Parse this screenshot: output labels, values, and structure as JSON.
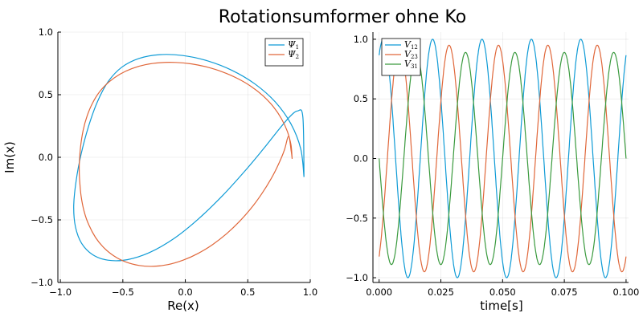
{
  "figure": {
    "title": "Rotationsumformer ohne Ko",
    "colors": {
      "blue": "#0f9bd6",
      "orange": "#e0673a",
      "green": "#3a9a3e"
    }
  },
  "chart_data": [
    {
      "type": "line",
      "name": "phase-plane",
      "xlabel": "Re(x)",
      "ylabel": "Im(x)",
      "xlim": [
        -1.02,
        1.0
      ],
      "ylim": [
        -1.0,
        1.0
      ],
      "xticks": [
        -1.0,
        -0.5,
        0.0,
        0.5,
        1.0
      ],
      "xtick_labels": [
        "−1.0",
        "−0.5",
        "0.0",
        "0.5",
        "1.0"
      ],
      "yticks": [
        -1.0,
        -0.5,
        0.0,
        0.5,
        1.0
      ],
      "ytick_labels": [
        "−1.0",
        "−0.5",
        "0.0",
        "0.5",
        "1.0"
      ],
      "grid": true,
      "legend": "top-right",
      "series": [
        {
          "name": "Ψ",
          "sub": "1",
          "color": "#0f9bd6",
          "x": [
            0.95,
            0.924,
            0.845,
            0.72,
            0.558,
            0.372,
            0.175,
            -0.02,
            -0.205,
            -0.37,
            -0.508,
            -0.617,
            -0.703,
            -0.774,
            -0.833,
            -0.874,
            -0.893,
            -0.879,
            -0.83,
            -0.743,
            -0.62,
            -0.465,
            -0.285,
            -0.09,
            0.108,
            0.3,
            0.474,
            0.621,
            0.739,
            0.83,
            0.898,
            0.941,
            0.95
          ],
          "y": [
            -0.158,
            0.066,
            0.268,
            0.442,
            0.585,
            0.695,
            0.771,
            0.813,
            0.82,
            0.79,
            0.72,
            0.605,
            0.445,
            0.248,
            0.03,
            -0.19,
            -0.39,
            -0.557,
            -0.687,
            -0.777,
            -0.822,
            -0.818,
            -0.76,
            -0.648,
            -0.49,
            -0.304,
            -0.113,
            0.062,
            0.21,
            0.318,
            0.37,
            0.322,
            -0.158
          ]
        },
        {
          "name": "Ψ",
          "sub": "2",
          "color": "#e0673a",
          "x": [
            0.855,
            0.846,
            0.817,
            0.77,
            0.705,
            0.624,
            0.528,
            0.419,
            0.301,
            0.177,
            0.05,
            -0.077,
            -0.2,
            -0.318,
            -0.427,
            -0.525,
            -0.611,
            -0.683,
            -0.741,
            -0.786,
            -0.818,
            -0.838,
            -0.848,
            -0.849,
            -0.846,
            -0.835,
            -0.811,
            -0.772,
            -0.718,
            -0.65,
            -0.568,
            -0.474,
            -0.369,
            -0.256,
            -0.138,
            -0.018,
            0.102,
            0.219,
            0.331,
            0.435,
            0.53,
            0.614,
            0.687,
            0.746,
            0.793,
            0.826,
            0.847,
            0.855
          ],
          "y": [
            -0.012,
            0.098,
            0.206,
            0.308,
            0.404,
            0.489,
            0.565,
            0.629,
            0.681,
            0.72,
            0.746,
            0.758,
            0.756,
            0.74,
            0.709,
            0.663,
            0.602,
            0.527,
            0.436,
            0.331,
            0.214,
            0.088,
            -0.044,
            -0.104,
            -0.176,
            -0.305,
            -0.428,
            -0.541,
            -0.641,
            -0.724,
            -0.79,
            -0.837,
            -0.864,
            -0.871,
            -0.857,
            -0.822,
            -0.768,
            -0.697,
            -0.61,
            -0.511,
            -0.403,
            -0.288,
            -0.171,
            -0.055,
            0.058,
            0.167,
            0.053,
            -0.012
          ]
        }
      ]
    },
    {
      "type": "line",
      "name": "voltages",
      "xlabel": "time[s]",
      "ylabel": "",
      "xlim": [
        -0.0025,
        0.101
      ],
      "ylim": [
        -1.04,
        1.06
      ],
      "xticks": [
        0.0,
        0.025,
        0.05,
        0.075,
        0.1
      ],
      "xtick_labels": [
        "0.000",
        "0.025",
        "0.050",
        "0.075",
        "0.100"
      ],
      "yticks": [
        -1.0,
        -0.5,
        0.0,
        0.5,
        1.0
      ],
      "ytick_labels": [
        "−1.0",
        "−0.5",
        "0.0",
        "0.5",
        "1.0"
      ],
      "grid": true,
      "legend": "top-left",
      "series": [
        {
          "name": "V",
          "sub": "12",
          "color": "#0f9bd6",
          "amplitude": 1.0,
          "frequency_hz": 50,
          "phase_deg": 60
        },
        {
          "name": "V",
          "sub": "23",
          "color": "#e0673a",
          "amplitude": 0.95,
          "frequency_hz": 50,
          "phase_deg": -60
        },
        {
          "name": "V",
          "sub": "31",
          "color": "#3a9a3e",
          "amplitude": 0.89,
          "frequency_hz": 50,
          "phase_deg": 180
        }
      ]
    }
  ]
}
